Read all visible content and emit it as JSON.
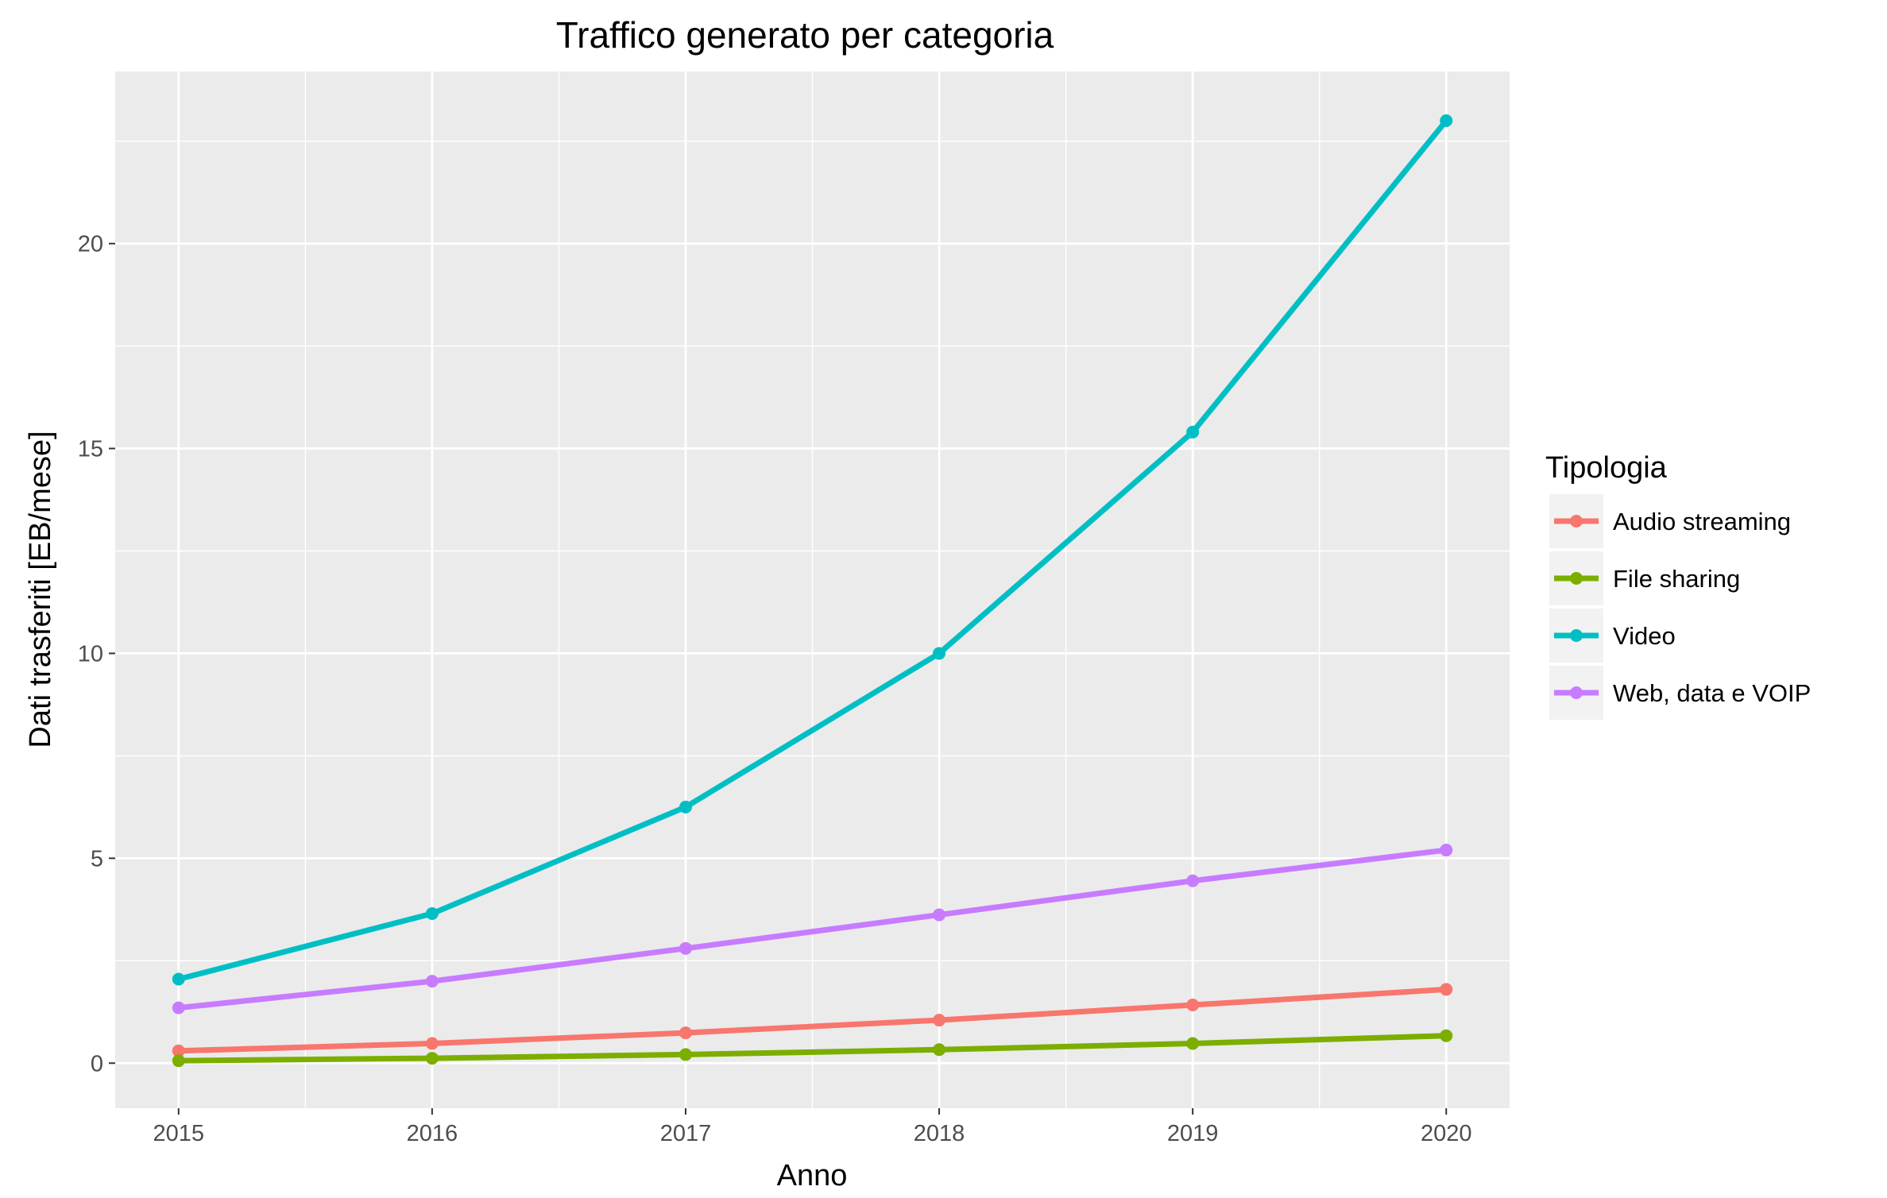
{
  "chart_data": {
    "type": "line",
    "title": "Traffico generato per categoria",
    "xlabel": "Anno",
    "ylabel": "Dati trasferiti [EB/mese]",
    "x": [
      2015,
      2016,
      2017,
      2018,
      2019,
      2020
    ],
    "xlim": [
      2014.75,
      2020.25
    ],
    "ylim": [
      -1.1,
      24.2
    ],
    "x_ticks": [
      2015,
      2016,
      2017,
      2018,
      2019,
      2020
    ],
    "y_ticks": [
      0,
      5,
      10,
      15,
      20
    ],
    "grid": true,
    "legend": {
      "title": "Tipologia",
      "position": "right"
    },
    "series": [
      {
        "name": "Audio streaming",
        "color": "#F8766D",
        "values": [
          0.3,
          0.48,
          0.74,
          1.05,
          1.42,
          1.8
        ]
      },
      {
        "name": "File sharing",
        "color": "#7CAE00",
        "values": [
          0.06,
          0.12,
          0.21,
          0.33,
          0.48,
          0.67
        ]
      },
      {
        "name": "Video",
        "color": "#00BFC4",
        "values": [
          2.05,
          3.65,
          6.25,
          10.0,
          15.4,
          23.0
        ]
      },
      {
        "name": "Web, data e VOIP",
        "color": "#C77CFF",
        "values": [
          1.35,
          2.0,
          2.8,
          3.62,
          4.45,
          5.2
        ]
      }
    ]
  }
}
